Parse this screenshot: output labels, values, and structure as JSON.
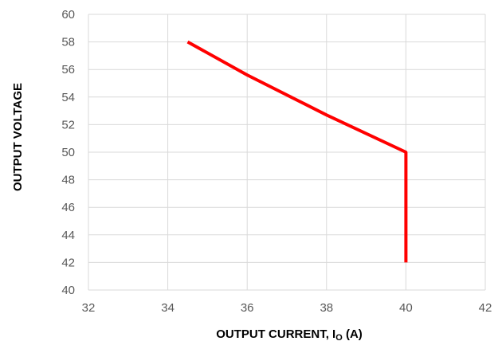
{
  "chart_data": {
    "type": "line",
    "title": "",
    "xlabel": "OUTPUT CURRENT, I",
    "xlabel_subscript": "O",
    "xlabel_suffix": " (A)",
    "ylabel": "OUTPUT VOLTAGE",
    "xlim": [
      32,
      42
    ],
    "ylim": [
      40,
      60
    ],
    "x_ticks": [
      "32",
      "34",
      "36",
      "38",
      "40",
      "42"
    ],
    "y_ticks": [
      "40",
      "42",
      "44",
      "46",
      "48",
      "50",
      "52",
      "54",
      "56",
      "58",
      "60"
    ],
    "grid": true,
    "legend": "none",
    "series": [
      {
        "color": "#ff0000",
        "points": [
          {
            "x": 34.5,
            "y": 58.0
          },
          {
            "x": 36.0,
            "y": 55.6
          },
          {
            "x": 38.0,
            "y": 52.7
          },
          {
            "x": 40.0,
            "y": 50.0
          },
          {
            "x": 40.0,
            "y": 42.0
          }
        ]
      }
    ]
  },
  "colors": {
    "grid": "#d9d9d9",
    "tick_text": "#595959",
    "line": "#ff0000"
  }
}
